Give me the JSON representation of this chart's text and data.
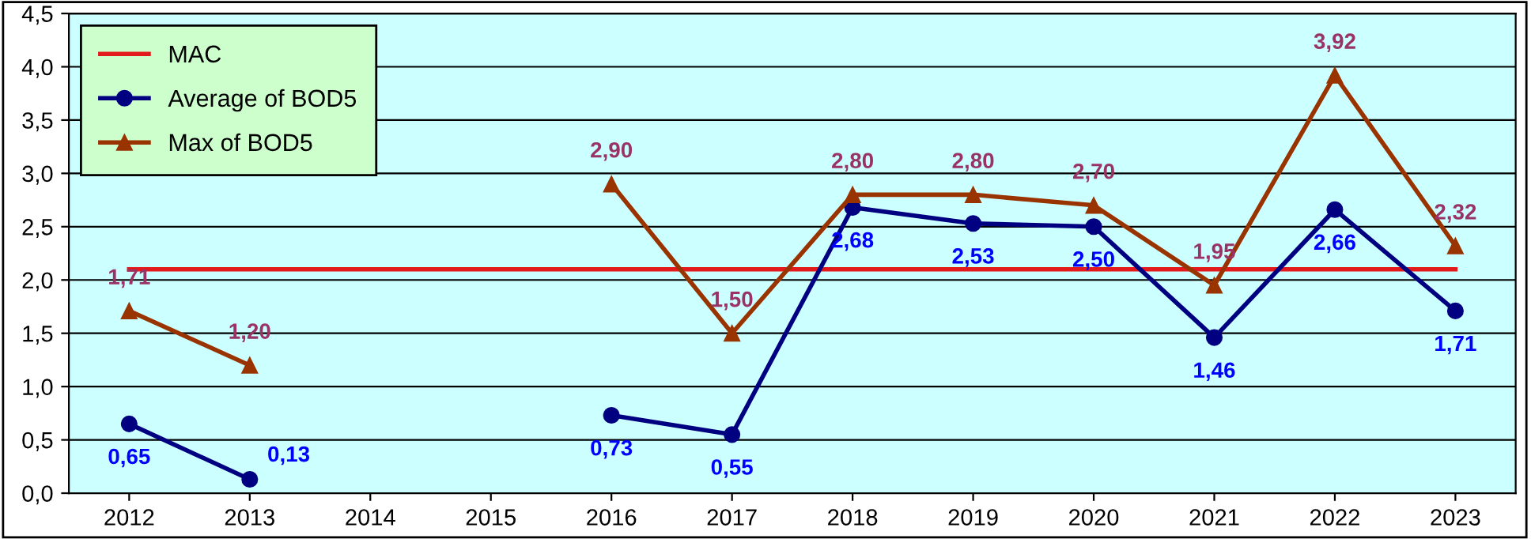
{
  "chart_data": {
    "type": "line",
    "categories": [
      "2012",
      "2013",
      "2014",
      "2015",
      "2016",
      "2017",
      "2018",
      "2019",
      "2020",
      "2021",
      "2022",
      "2023"
    ],
    "series": [
      {
        "name": "MAC",
        "color": "#e31a1c",
        "marker": "none",
        "values": [
          2.1,
          2.1,
          2.1,
          2.1,
          2.1,
          2.1,
          2.1,
          2.1,
          2.1,
          2.1,
          2.1,
          2.1
        ]
      },
      {
        "name": "Average of BOD5",
        "color": "#000080",
        "marker": "circle",
        "values": [
          0.65,
          0.13,
          null,
          null,
          0.73,
          0.55,
          2.68,
          2.53,
          2.5,
          1.46,
          2.66,
          1.71
        ],
        "value_labels": [
          "0,65",
          "0,13",
          null,
          null,
          "0,73",
          "0,55",
          "2,68",
          "2,53",
          "2,50",
          "1,46",
          "2,66",
          "1,71"
        ]
      },
      {
        "name": "Max of BOD5",
        "color": "#993300",
        "marker": "triangle",
        "values": [
          1.71,
          1.2,
          null,
          null,
          2.9,
          1.5,
          2.8,
          2.8,
          2.7,
          1.95,
          3.92,
          2.32
        ],
        "value_labels": [
          "1,71",
          "1,20",
          null,
          null,
          "2,90",
          "1,50",
          "2,80",
          "2,80",
          "2,70",
          "1,95",
          "3,92",
          "2,32"
        ]
      }
    ],
    "ylim": [
      0,
      4.5
    ],
    "yticks": [
      {
        "value": 0,
        "label": "0,0"
      },
      {
        "value": 0.5,
        "label": "0,5"
      },
      {
        "value": 1,
        "label": "1,0"
      },
      {
        "value": 1.5,
        "label": "1,5"
      },
      {
        "value": 2,
        "label": "2,0"
      },
      {
        "value": 2.5,
        "label": "2,5"
      },
      {
        "value": 3,
        "label": "3,0"
      },
      {
        "value": 3.5,
        "label": "3,5"
      },
      {
        "value": 4,
        "label": "4,0"
      },
      {
        "value": 4.5,
        "label": "4,5"
      }
    ],
    "grid": "y",
    "legend": "top left"
  }
}
